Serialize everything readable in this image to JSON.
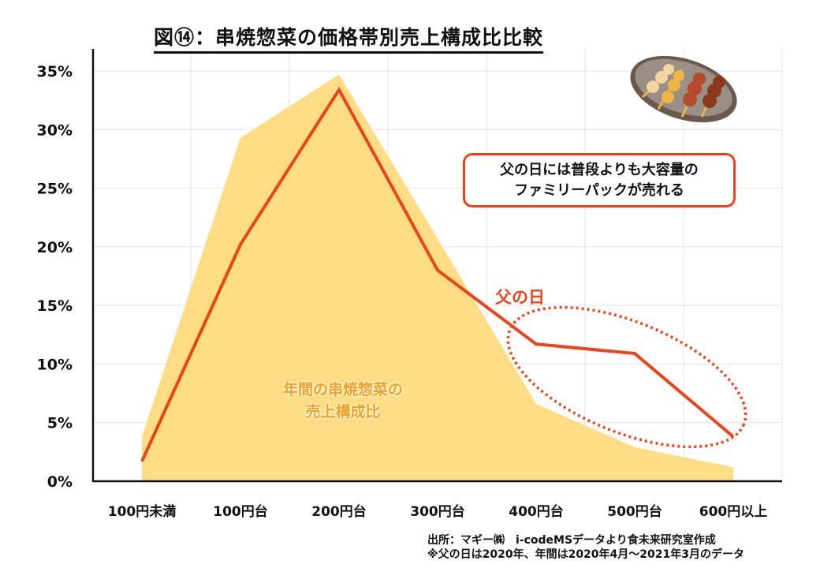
{
  "title": "図⑭：串焼惣菜の価格帯別売上構成比比較",
  "callout": {
    "line1": "父の日には普段よりも大容量の",
    "line2": "ファミリーパックが売れる"
  },
  "series_label_fathers_day": "父の日",
  "area_label": {
    "line1": "年間の串焼惣菜の",
    "line2": "売上構成比"
  },
  "source": {
    "line1": "出所：マギー㈱　i-codeMSデータより食未来研究室作成",
    "line2": "※父の日は2020年、年間は2020年4月～2021年3月のデータ"
  },
  "colors": {
    "area": "#fddc84",
    "line": "#e8451c",
    "grid": "#e2e2e2"
  },
  "chart_data": {
    "type": "area",
    "title": "図⑭：串焼惣菜の価格帯別売上構成比比較",
    "categories": [
      "100円未満",
      "100円台",
      "200円台",
      "300円台",
      "400円台",
      "500円台",
      "600円以上"
    ],
    "series": [
      {
        "name": "年間の串焼惣菜の売上構成比",
        "type": "area",
        "values": [
          3.8,
          29.3,
          34.7,
          20.7,
          6.6,
          2.9,
          1.2
        ]
      },
      {
        "name": "父の日",
        "type": "line",
        "values": [
          1.7,
          20.2,
          33.4,
          18.0,
          11.7,
          10.9,
          3.8
        ]
      }
    ],
    "yticks": [
      "0%",
      "5%",
      "10%",
      "15%",
      "20%",
      "25%",
      "30%",
      "35%"
    ],
    "ylim": [
      0,
      35
    ],
    "grid": true,
    "xlabel": "",
    "ylabel": ""
  }
}
